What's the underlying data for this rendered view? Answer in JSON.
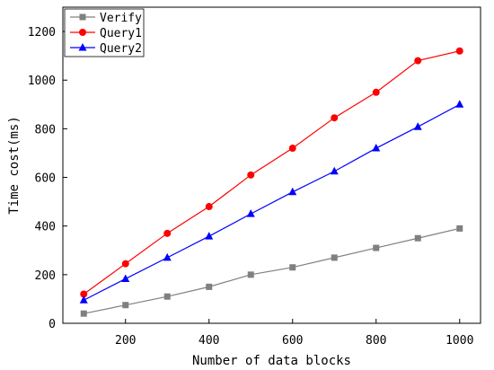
{
  "chart_data": {
    "type": "line",
    "title": "",
    "xlabel": "Number of data blocks",
    "ylabel": "Time cost(ms)",
    "x": [
      100,
      200,
      300,
      400,
      500,
      600,
      700,
      800,
      900,
      1000
    ],
    "xlim": [
      50,
      1050
    ],
    "ylim": [
      0,
      1300
    ],
    "xticks": [
      200,
      400,
      600,
      800,
      1000
    ],
    "yticks": [
      0,
      200,
      400,
      600,
      800,
      1000,
      1200
    ],
    "grid": false,
    "legend_position": "top-left",
    "series": [
      {
        "name": "Verify",
        "color": "#808080",
        "marker": "square",
        "values": [
          40,
          75,
          110,
          150,
          200,
          230,
          270,
          310,
          350,
          390
        ]
      },
      {
        "name": "Query1",
        "color": "#ff0000",
        "marker": "circle",
        "values": [
          120,
          245,
          370,
          480,
          610,
          720,
          845,
          950,
          1080,
          1120
        ]
      },
      {
        "name": "Query2",
        "color": "#0000ff",
        "marker": "triangle",
        "values": [
          95,
          183,
          270,
          358,
          450,
          540,
          625,
          720,
          808,
          900
        ]
      }
    ]
  }
}
